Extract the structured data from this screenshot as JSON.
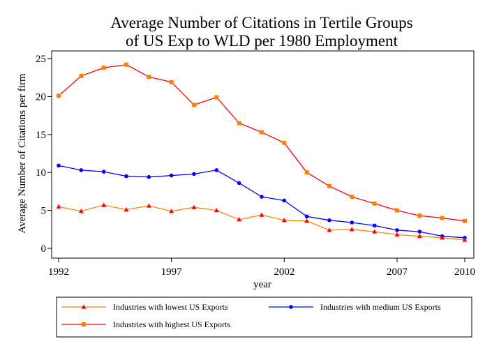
{
  "chart_data": {
    "type": "line",
    "title_lines": [
      "Average Number of Citations in Tertile Groups",
      "of US Exp to WLD per 1980 Employment"
    ],
    "xlabel": "year",
    "ylabel": "Average Number of Citations per firm",
    "xlim": [
      1992,
      2010
    ],
    "ylim": [
      0,
      25
    ],
    "x_ticks": [
      1992,
      1997,
      2002,
      2007,
      2010
    ],
    "y_ticks": [
      0,
      5,
      10,
      15,
      20,
      25
    ],
    "grid": false,
    "legend_position": "bottom",
    "x": [
      1992,
      1993,
      1994,
      1995,
      1996,
      1997,
      1998,
      1999,
      2000,
      2001,
      2002,
      2003,
      2004,
      2005,
      2006,
      2007,
      2008,
      2009,
      2010
    ],
    "series": [
      {
        "name": "Industries with lowest US Exports",
        "color": "#ff8000",
        "marker_color": "#ff0000",
        "marker": "triangle",
        "values": [
          5.5,
          4.9,
          5.7,
          5.1,
          5.6,
          4.9,
          5.4,
          5.0,
          3.8,
          4.4,
          3.7,
          3.6,
          2.4,
          2.5,
          2.2,
          1.8,
          1.6,
          1.4,
          1.1
        ]
      },
      {
        "name": "Industries with medium US Exports",
        "color": "#0000ff",
        "marker_color": "#0000ff",
        "marker": "circle",
        "values": [
          10.9,
          10.3,
          10.1,
          9.5,
          9.4,
          9.6,
          9.8,
          10.3,
          8.6,
          6.8,
          6.3,
          4.2,
          3.7,
          3.4,
          3.0,
          2.4,
          2.2,
          1.6,
          1.4
        ]
      },
      {
        "name": "Industries with highest US Exports",
        "color": "#ff0000",
        "marker_color": "#ff8000",
        "marker": "square",
        "values": [
          20.1,
          22.7,
          23.8,
          24.2,
          22.6,
          21.9,
          18.9,
          19.9,
          16.5,
          15.3,
          13.9,
          10.0,
          8.2,
          6.8,
          5.9,
          5.0,
          4.3,
          4.0,
          3.6
        ]
      }
    ]
  }
}
